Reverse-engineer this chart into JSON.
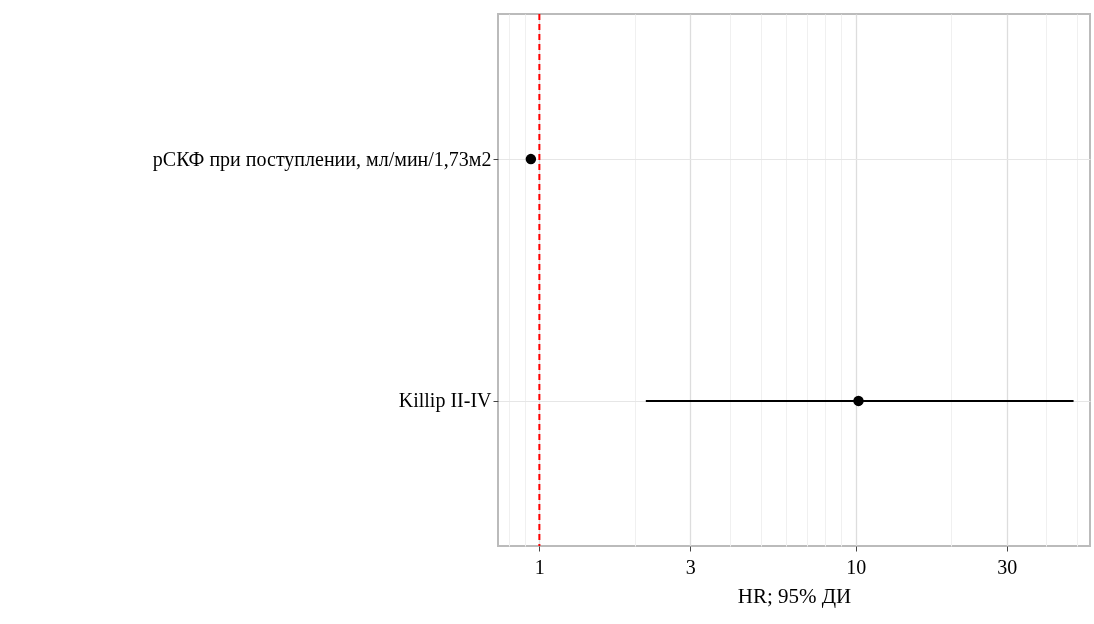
{
  "chart_data": {
    "type": "scatter",
    "xlabel": "HR; 95% ДИ",
    "log": "x",
    "orientation": "horizontal",
    "categories": [
      "рСКФ при поступлении, мл/мин/1,73м2",
      "Killip II-IV"
    ],
    "series": [
      {
        "color": "#000000",
        "values": [
          0.94,
          10.2
        ],
        "errors": [
          null,
          [
            2.17,
            48.8
          ]
        ]
      }
    ],
    "xlim": [
      0.74,
      55
    ],
    "xticks": [
      {
        "value": 0.8,
        "label": null
      },
      {
        "value": 0.9,
        "label": null
      },
      1,
      {
        "value": 2,
        "label": null
      },
      3,
      {
        "value": 4,
        "label": null
      },
      {
        "value": 5,
        "label": null
      },
      {
        "value": 6,
        "label": null
      },
      {
        "value": 7,
        "label": null
      },
      {
        "value": 8,
        "label": null
      },
      {
        "value": 9,
        "label": null
      },
      10,
      {
        "value": 20,
        "label": null
      },
      30,
      {
        "value": 40,
        "label": null
      },
      {
        "value": 50,
        "label": null
      }
    ],
    "ref_lines": [
      {
        "axis": "x",
        "value": 1,
        "color": "#ff0000",
        "line_style": "dashed"
      }
    ],
    "grid": true,
    "marker": "circle"
  }
}
